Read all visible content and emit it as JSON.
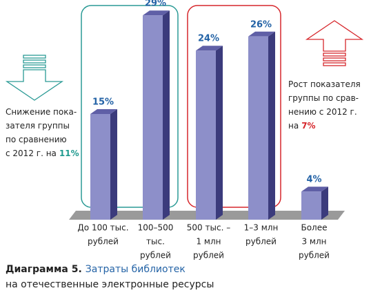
{
  "chart_data": {
    "type": "bar3d",
    "categories": [
      [
        "До 100 тыс.",
        "рублей"
      ],
      [
        "100–500",
        "тыс.",
        "рублей"
      ],
      [
        "500 тыс. –",
        "1 млн",
        "рублей"
      ],
      [
        "1–3 млн",
        "рублей"
      ],
      [
        "Более",
        "3 млн",
        "рублей"
      ]
    ],
    "values": [
      15,
      29,
      24,
      26,
      4
    ],
    "value_labels": [
      "15%",
      "29%",
      "24%",
      "26%",
      "4%"
    ],
    "color": "#8d8fc9",
    "annotations": [
      {
        "lines": [
          "Снижение пока-",
          "зателя группы",
          "по сравнению",
          "с 2012 г. на"
        ],
        "highlight": "11%",
        "highlight_color": "#1f9a8f"
      },
      {
        "lines": [
          "Рост показателя",
          "группы по срав-",
          "нению с 2012 г.",
          "на"
        ],
        "highlight": "7%",
        "highlight_color": "#d6262b"
      }
    ],
    "caption_label": "Диаграмма 5.",
    "title_lines": [
      "Затраты библиотек",
      "на отечественные электронные ресурсы"
    ]
  }
}
